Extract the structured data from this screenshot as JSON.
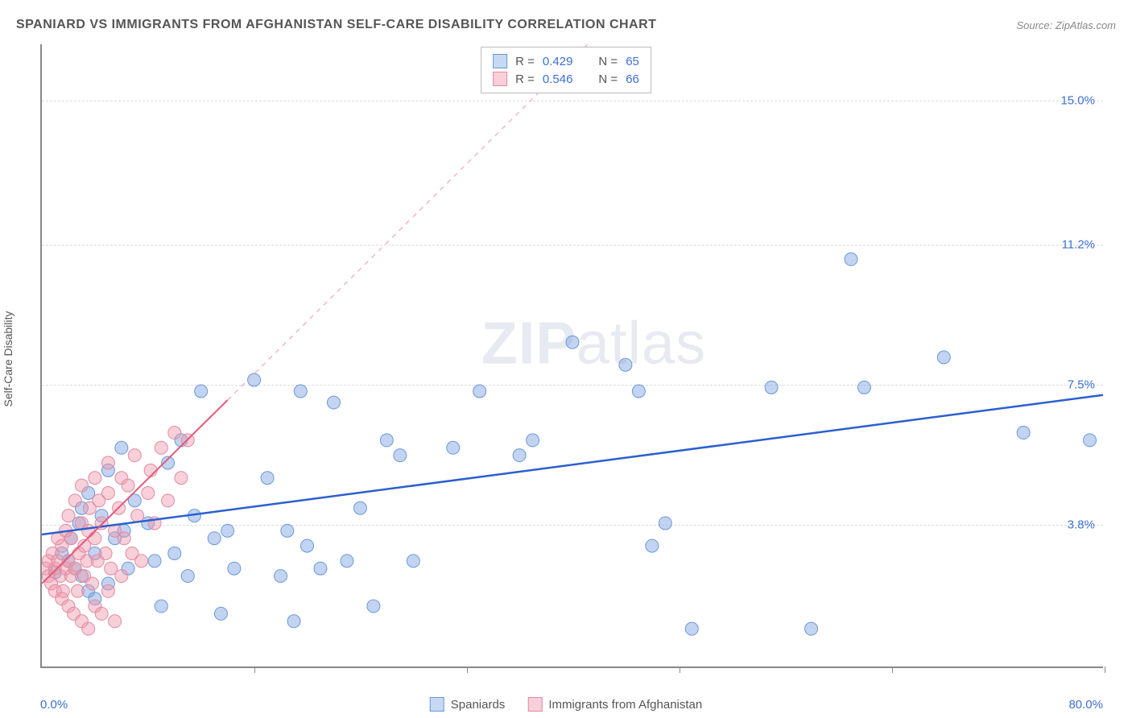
{
  "title": "SPANIARD VS IMMIGRANTS FROM AFGHANISTAN SELF-CARE DISABILITY CORRELATION CHART",
  "source": "Source: ZipAtlas.com",
  "y_axis_label": "Self-Care Disability",
  "watermark": {
    "bold": "ZIP",
    "rest": "atlas"
  },
  "chart": {
    "type": "scatter",
    "xlim": [
      0,
      80
    ],
    "ylim": [
      0,
      16.5
    ],
    "x_tick_positions": [
      0,
      16,
      32,
      48,
      64,
      80
    ],
    "x_tick_labels_shown": {
      "0": "0.0%",
      "80": "80.0%"
    },
    "y_ticks": [
      {
        "v": 3.8,
        "label": "3.8%"
      },
      {
        "v": 7.5,
        "label": "7.5%"
      },
      {
        "v": 11.2,
        "label": "11.2%"
      },
      {
        "v": 15.0,
        "label": "15.0%"
      }
    ],
    "grid_color": "#dddddd",
    "background_color": "#ffffff",
    "axis_color": "#888888",
    "series": [
      {
        "name": "Spaniards",
        "color_fill": "rgba(120,160,225,0.45)",
        "color_stroke": "#6a98d8",
        "swatch_fill": "#c7d9f2",
        "swatch_border": "#6a98d8",
        "marker_radius": 8,
        "R": "0.429",
        "N": "65",
        "trend": {
          "type": "solid",
          "color": "#2a5fd0",
          "width": 2.5,
          "x1": 0,
          "y1": 3.5,
          "x2": 80,
          "y2": 7.2
        },
        "points": [
          [
            1,
            2.5
          ],
          [
            1.5,
            3.0
          ],
          [
            2,
            2.8
          ],
          [
            2.2,
            3.4
          ],
          [
            2.5,
            2.6
          ],
          [
            2.8,
            3.8
          ],
          [
            3,
            2.4
          ],
          [
            3,
            4.2
          ],
          [
            3.5,
            2.0
          ],
          [
            3.5,
            4.6
          ],
          [
            4,
            1.8
          ],
          [
            4,
            3.0
          ],
          [
            4.5,
            4.0
          ],
          [
            5,
            2.2
          ],
          [
            5,
            5.2
          ],
          [
            5.5,
            3.4
          ],
          [
            6,
            5.8
          ],
          [
            6.2,
            3.6
          ],
          [
            6.5,
            2.6
          ],
          [
            7,
            4.4
          ],
          [
            8,
            3.8
          ],
          [
            8.5,
            2.8
          ],
          [
            9,
            1.6
          ],
          [
            9.5,
            5.4
          ],
          [
            10,
            3.0
          ],
          [
            10.5,
            6.0
          ],
          [
            11,
            2.4
          ],
          [
            11.5,
            4.0
          ],
          [
            12,
            7.3
          ],
          [
            13,
            3.4
          ],
          [
            13.5,
            1.4
          ],
          [
            14,
            3.6
          ],
          [
            14.5,
            2.6
          ],
          [
            16,
            7.6
          ],
          [
            17,
            5.0
          ],
          [
            18,
            2.4
          ],
          [
            18.5,
            3.6
          ],
          [
            19,
            1.2
          ],
          [
            19.5,
            7.3
          ],
          [
            20,
            3.2
          ],
          [
            21,
            2.6
          ],
          [
            22,
            7.0
          ],
          [
            23,
            2.8
          ],
          [
            24,
            4.2
          ],
          [
            25,
            1.6
          ],
          [
            26,
            6.0
          ],
          [
            27,
            5.6
          ],
          [
            28,
            2.8
          ],
          [
            31,
            5.8
          ],
          [
            33,
            7.3
          ],
          [
            36,
            5.6
          ],
          [
            37,
            6.0
          ],
          [
            40,
            8.6
          ],
          [
            44,
            8.0
          ],
          [
            45,
            7.3
          ],
          [
            46,
            3.2
          ],
          [
            47,
            3.8
          ],
          [
            49,
            1.0
          ],
          [
            55,
            7.4
          ],
          [
            58,
            1.0
          ],
          [
            61,
            10.8
          ],
          [
            62,
            7.4
          ],
          [
            68,
            8.2
          ],
          [
            74,
            6.2
          ],
          [
            79,
            6.0
          ]
        ]
      },
      {
        "name": "Immigrants from Afghanistan",
        "color_fill": "rgba(240,150,170,0.45)",
        "color_stroke": "#e28aa0",
        "swatch_fill": "#f7d0da",
        "swatch_border": "#e28aa0",
        "marker_radius": 8,
        "R": "0.546",
        "N": "66",
        "trend": {
          "type": "solid_then_dashed",
          "color": "#e35a7a",
          "dash_color": "#f5b5c5",
          "width": 2,
          "x1": 0,
          "y1": 2.2,
          "x2": 80,
          "y2": 30.0,
          "solid_until_x": 14
        },
        "points": [
          [
            0.3,
            2.6
          ],
          [
            0.5,
            2.4
          ],
          [
            0.5,
            2.8
          ],
          [
            0.7,
            2.2
          ],
          [
            0.8,
            3.0
          ],
          [
            1.0,
            2.0
          ],
          [
            1.0,
            2.6
          ],
          [
            1.2,
            2.8
          ],
          [
            1.2,
            3.4
          ],
          [
            1.4,
            2.4
          ],
          [
            1.5,
            1.8
          ],
          [
            1.5,
            3.2
          ],
          [
            1.6,
            2.0
          ],
          [
            1.8,
            3.6
          ],
          [
            1.8,
            2.6
          ],
          [
            2.0,
            1.6
          ],
          [
            2.0,
            2.8
          ],
          [
            2.0,
            4.0
          ],
          [
            2.2,
            2.4
          ],
          [
            2.2,
            3.4
          ],
          [
            2.4,
            1.4
          ],
          [
            2.5,
            2.6
          ],
          [
            2.5,
            4.4
          ],
          [
            2.7,
            2.0
          ],
          [
            2.8,
            3.0
          ],
          [
            3.0,
            1.2
          ],
          [
            3.0,
            3.8
          ],
          [
            3.0,
            4.8
          ],
          [
            3.2,
            2.4
          ],
          [
            3.2,
            3.2
          ],
          [
            3.4,
            2.8
          ],
          [
            3.5,
            1.0
          ],
          [
            3.5,
            3.6
          ],
          [
            3.6,
            4.2
          ],
          [
            3.8,
            2.2
          ],
          [
            4.0,
            1.6
          ],
          [
            4.0,
            3.4
          ],
          [
            4.0,
            5.0
          ],
          [
            4.2,
            2.8
          ],
          [
            4.3,
            4.4
          ],
          [
            4.5,
            3.8
          ],
          [
            4.5,
            1.4
          ],
          [
            4.8,
            3.0
          ],
          [
            5.0,
            2.0
          ],
          [
            5.0,
            4.6
          ],
          [
            5.0,
            5.4
          ],
          [
            5.2,
            2.6
          ],
          [
            5.5,
            3.6
          ],
          [
            5.5,
            1.2
          ],
          [
            5.8,
            4.2
          ],
          [
            6.0,
            2.4
          ],
          [
            6.0,
            5.0
          ],
          [
            6.2,
            3.4
          ],
          [
            6.5,
            4.8
          ],
          [
            6.8,
            3.0
          ],
          [
            7.0,
            5.6
          ],
          [
            7.2,
            4.0
          ],
          [
            7.5,
            2.8
          ],
          [
            8.0,
            4.6
          ],
          [
            8.2,
            5.2
          ],
          [
            8.5,
            3.8
          ],
          [
            9.0,
            5.8
          ],
          [
            9.5,
            4.4
          ],
          [
            10.0,
            6.2
          ],
          [
            10.5,
            5.0
          ],
          [
            11.0,
            6.0
          ]
        ]
      }
    ]
  },
  "legend_top": {
    "r_label": "R =",
    "n_label": "N ="
  },
  "legend_bottom": [
    {
      "label": "Spaniards",
      "swatch_fill": "#c7d9f2",
      "swatch_border": "#6a98d8"
    },
    {
      "label": "Immigrants from Afghanistan",
      "swatch_fill": "#f7d0da",
      "swatch_border": "#e28aa0"
    }
  ]
}
